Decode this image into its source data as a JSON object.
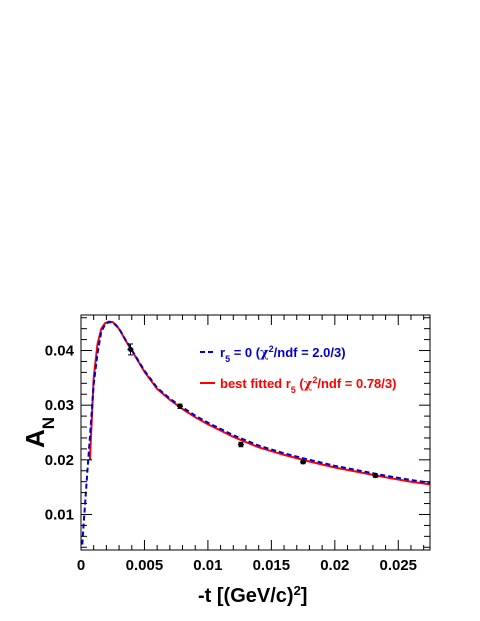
{
  "chart_data": {
    "type": "line",
    "title": "",
    "xlabel": "-t [(GeV/c)",
    "xlabel_sup": "2",
    "xlabel_close": "]",
    "ylabel_main": "A",
    "ylabel_sub": "N",
    "xlim": [
      0,
      0.0275
    ],
    "ylim": [
      0.0035,
      0.0465
    ],
    "x_ticks": [
      {
        "value": 0,
        "label": "0"
      },
      {
        "value": 0.005,
        "label": "0.005"
      },
      {
        "value": 0.01,
        "label": "0.01"
      },
      {
        "value": 0.015,
        "label": "0.015"
      },
      {
        "value": 0.02,
        "label": "0.02"
      },
      {
        "value": 0.025,
        "label": "0.025"
      }
    ],
    "y_ticks": [
      {
        "value": 0.01,
        "label": "0.01"
      },
      {
        "value": 0.02,
        "label": "0.02"
      },
      {
        "value": 0.03,
        "label": "0.03"
      },
      {
        "value": 0.04,
        "label": "0.04"
      }
    ],
    "grid": false,
    "legend_position": "top-right",
    "points": [
      {
        "x": 0.0039,
        "y": 0.0402,
        "err": 0.001
      },
      {
        "x": 0.0078,
        "y": 0.0298,
        "err": 0.0004
      },
      {
        "x": 0.0126,
        "y": 0.0228,
        "err": 0.0004
      },
      {
        "x": 0.0175,
        "y": 0.0196,
        "err": 0.0003
      },
      {
        "x": 0.0232,
        "y": 0.0171,
        "err": 0.0003
      }
    ],
    "series": [
      {
        "name": "r",
        "name_sub": "5",
        "name_rest": " = 0 (",
        "name_chi": "χ",
        "name_chi_sup": "2",
        "name_tail": "/ndf = 2.0/3)",
        "style": "dashed",
        "color": "#0000cc",
        "x": [
          0.0001,
          0.0002,
          0.0003,
          0.0005,
          0.0007,
          0.001,
          0.0013,
          0.0016,
          0.0019,
          0.0022,
          0.0025,
          0.0028,
          0.0031,
          0.0035,
          0.004,
          0.005,
          0.006,
          0.007,
          0.008,
          0.009,
          0.01,
          0.012,
          0.014,
          0.016,
          0.018,
          0.02,
          0.022,
          0.024,
          0.026,
          0.0275
        ],
        "values": [
          0.0045,
          0.0079,
          0.0112,
          0.0177,
          0.0241,
          0.0338,
          0.0395,
          0.0434,
          0.0448,
          0.0452,
          0.0451,
          0.0445,
          0.0436,
          0.042,
          0.0401,
          0.0363,
          0.0332,
          0.0312,
          0.0296,
          0.0281,
          0.0268,
          0.0245,
          0.0226,
          0.0212,
          0.02,
          0.0189,
          0.018,
          0.0171,
          0.0163,
          0.0158
        ]
      },
      {
        "name": "best fitted r",
        "name_sub": "5",
        "name_rest": " (",
        "name_chi": "χ",
        "name_chi_sup": "2",
        "name_tail": "/ndf = 0.78/3)",
        "style": "solid",
        "color": "#ff0000",
        "x": [
          0.0007,
          0.001,
          0.0013,
          0.0016,
          0.0019,
          0.0022,
          0.0025,
          0.0028,
          0.0031,
          0.0035,
          0.004,
          0.005,
          0.006,
          0.007,
          0.008,
          0.009,
          0.01,
          0.012,
          0.014,
          0.016,
          0.018,
          0.02,
          0.022,
          0.024,
          0.026,
          0.0275
        ],
        "values": [
          0.02,
          0.035,
          0.0412,
          0.044,
          0.045,
          0.0453,
          0.0452,
          0.0446,
          0.0436,
          0.0419,
          0.04,
          0.0361,
          0.033,
          0.031,
          0.0293,
          0.0278,
          0.0265,
          0.0242,
          0.0223,
          0.0209,
          0.0197,
          0.0186,
          0.0177,
          0.0168,
          0.016,
          0.0155
        ]
      }
    ]
  }
}
